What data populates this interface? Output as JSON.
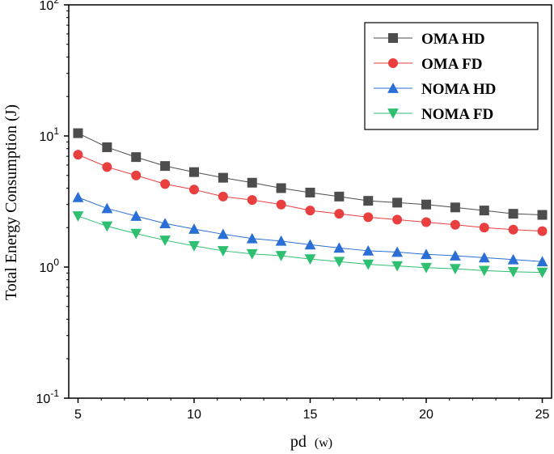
{
  "chart_data": {
    "type": "line",
    "xlabel": "pd",
    "xlabel_unit": "(w)",
    "ylabel": "Total Energy Consumption (J)",
    "xlim": [
      4.6,
      25.4
    ],
    "ylim": [
      0.1,
      100
    ],
    "yscale": "log",
    "xticks": [
      5,
      10,
      15,
      20,
      25
    ],
    "yticks": [
      {
        "value": 0.1,
        "base": "10",
        "exp": "-1"
      },
      {
        "value": 1,
        "base": "10",
        "exp": "0"
      },
      {
        "value": 10,
        "base": "10",
        "exp": "1"
      },
      {
        "value": 100,
        "base": "10",
        "exp": "2"
      }
    ],
    "legend_position": "top-right",
    "x": [
      5,
      6.25,
      7.5,
      8.75,
      10,
      11.25,
      12.5,
      13.75,
      15,
      16.25,
      17.5,
      18.75,
      20,
      21.25,
      22.5,
      23.75,
      25
    ],
    "series": [
      {
        "name": "OMA HD",
        "marker": "square",
        "color": "#4d4d4d",
        "values": [
          10.5,
          8.2,
          6.9,
          5.9,
          5.3,
          4.8,
          4.4,
          4.0,
          3.7,
          3.45,
          3.2,
          3.1,
          3.0,
          2.85,
          2.7,
          2.55,
          2.5
        ]
      },
      {
        "name": "OMA FD",
        "marker": "circle",
        "color": "#ea3f3f",
        "values": [
          7.2,
          5.8,
          5.0,
          4.3,
          3.9,
          3.45,
          3.25,
          3.0,
          2.7,
          2.55,
          2.4,
          2.3,
          2.2,
          2.1,
          2.0,
          1.93,
          1.88
        ]
      },
      {
        "name": "NOMA HD",
        "marker": "triangle-up",
        "color": "#2a6fd6",
        "values": [
          3.4,
          2.8,
          2.45,
          2.15,
          1.95,
          1.78,
          1.65,
          1.58,
          1.48,
          1.4,
          1.33,
          1.3,
          1.25,
          1.22,
          1.18,
          1.14,
          1.1
        ]
      },
      {
        "name": "NOMA FD",
        "marker": "triangle-down",
        "color": "#2fbf71",
        "values": [
          2.45,
          2.05,
          1.8,
          1.6,
          1.45,
          1.33,
          1.26,
          1.22,
          1.15,
          1.1,
          1.05,
          1.02,
          0.99,
          0.97,
          0.94,
          0.92,
          0.91
        ]
      }
    ]
  }
}
